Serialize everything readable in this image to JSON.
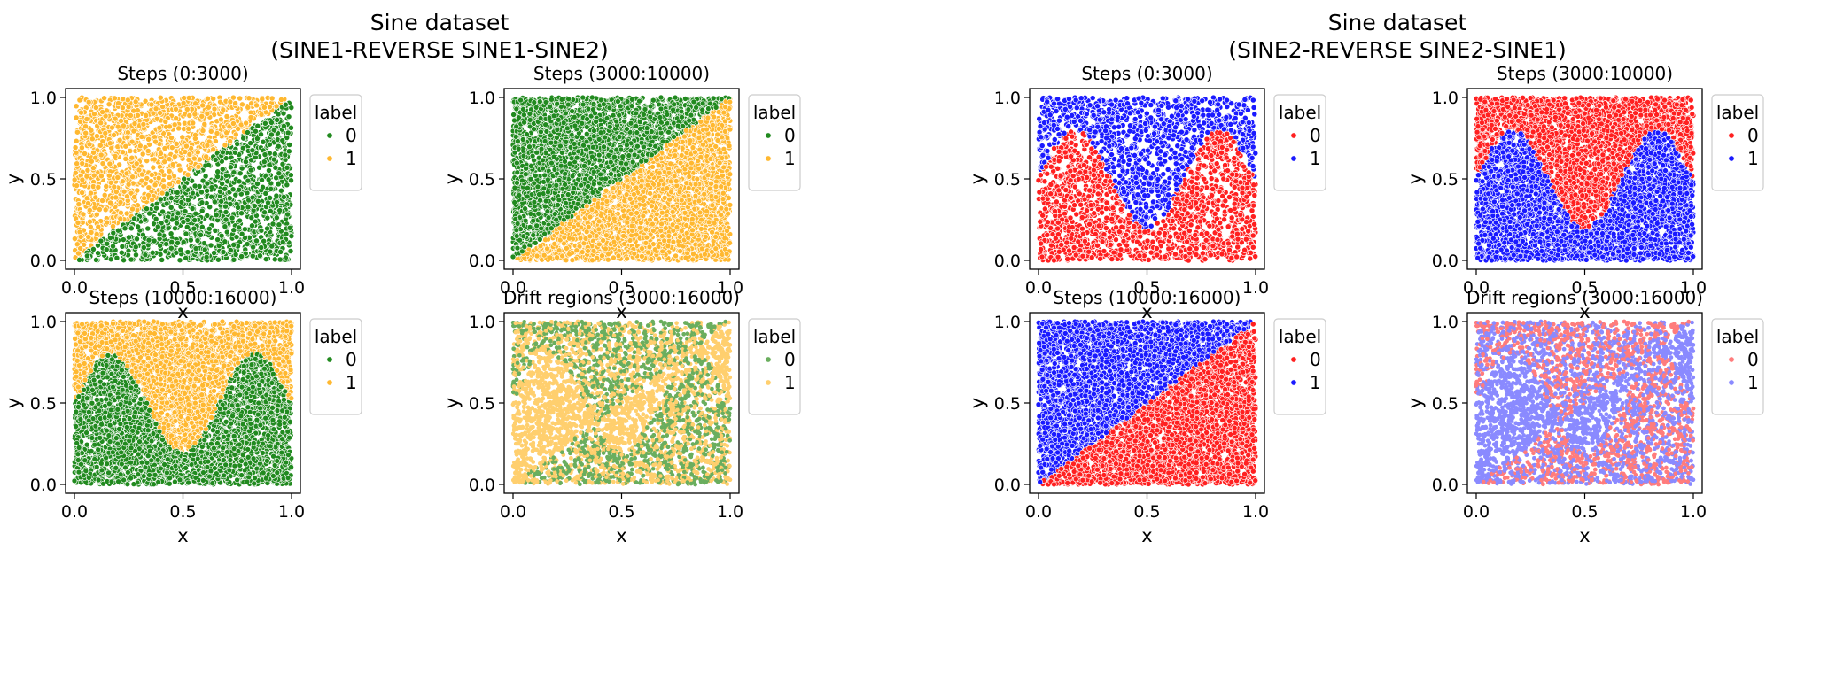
{
  "figure_titles": [
    {
      "line1": "Sine dataset",
      "line2": "(SINE1-REVERSE SINE1-SINE2)"
    },
    {
      "line1": "Sine dataset",
      "line2": "(SINE2-REVERSE SINE2-SINE1)"
    }
  ],
  "colors": {
    "green": "#218a1f",
    "orange": "#ffb830",
    "red": "#ff2020",
    "blue": "#1a1aff",
    "green_light": "#6aae5e",
    "orange_light": "#ffcf6e",
    "red_light": "#ff7c7c",
    "blue_light": "#8a8aff"
  },
  "chart_data": [
    {
      "type": "scatter",
      "title": "Steps (0:3000)",
      "xlabel": "x",
      "ylabel": "y",
      "xlim": [
        0,
        1
      ],
      "ylim": [
        0,
        1
      ],
      "xticks": [
        "0.0",
        "0.5",
        "1.0"
      ],
      "yticks": [
        "0.0",
        "0.5",
        "1.0"
      ],
      "legend": {
        "title": "label",
        "placement": "right",
        "entries": [
          {
            "label": "0",
            "color": "green"
          },
          {
            "label": "1",
            "color": "orange"
          }
        ]
      },
      "boundary": "sine1",
      "below": "orange",
      "above": "green",
      "density": "sparse"
    },
    {
      "type": "scatter",
      "title": "Steps (3000:10000)",
      "xlabel": "x",
      "ylabel": "y",
      "xlim": [
        0,
        1
      ],
      "ylim": [
        0,
        1
      ],
      "xticks": [
        "0.0",
        "0.5",
        "1.0"
      ],
      "yticks": [
        "0.0",
        "0.5",
        "1.0"
      ],
      "legend": {
        "title": "label",
        "placement": "right",
        "entries": [
          {
            "label": "0",
            "color": "green"
          },
          {
            "label": "1",
            "color": "orange"
          }
        ]
      },
      "boundary": "sine1",
      "below": "green",
      "above": "orange",
      "density": "dense"
    },
    {
      "type": "scatter",
      "title": "Steps (10000:16000)",
      "xlabel": "x",
      "ylabel": "y",
      "xlim": [
        0,
        1
      ],
      "ylim": [
        0,
        1
      ],
      "xticks": [
        "0.0",
        "0.5",
        "1.0"
      ],
      "yticks": [
        "0.0",
        "0.5",
        "1.0"
      ],
      "legend": {
        "title": "label",
        "placement": "right",
        "entries": [
          {
            "label": "0",
            "color": "green"
          },
          {
            "label": "1",
            "color": "orange"
          }
        ]
      },
      "boundary": "sine2",
      "below": "orange",
      "above": "green",
      "density": "dense"
    },
    {
      "type": "scatter",
      "title": "Drift regions (3000:16000)",
      "xlabel": "x",
      "ylabel": "y",
      "xlim": [
        0,
        1
      ],
      "ylim": [
        0,
        1
      ],
      "xticks": [
        "0.0",
        "0.5",
        "1.0"
      ],
      "yticks": [
        "0.0",
        "0.5",
        "1.0"
      ],
      "legend": {
        "title": "label",
        "placement": "right",
        "entries": [
          {
            "label": "0",
            "color": "green_light"
          },
          {
            "label": "1",
            "color": "orange_light"
          }
        ]
      },
      "boundary": "drift",
      "c0": "green_light",
      "c1": "orange_light",
      "density": "drift"
    },
    {
      "type": "scatter",
      "title": "Steps (0:3000)",
      "xlabel": "x",
      "ylabel": "y",
      "xlim": [
        0,
        1
      ],
      "ylim": [
        0,
        1
      ],
      "xticks": [
        "0.0",
        "0.5",
        "1.0"
      ],
      "yticks": [
        "0.0",
        "0.5",
        "1.0"
      ],
      "legend": {
        "title": "label",
        "placement": "right",
        "entries": [
          {
            "label": "0",
            "color": "red"
          },
          {
            "label": "1",
            "color": "blue"
          }
        ]
      },
      "boundary": "sine2",
      "below": "blue",
      "above": "red",
      "density": "sparse"
    },
    {
      "type": "scatter",
      "title": "Steps (3000:10000)",
      "xlabel": "x",
      "ylabel": "y",
      "xlim": [
        0,
        1
      ],
      "ylim": [
        0,
        1
      ],
      "xticks": [
        "0.0",
        "0.5",
        "1.0"
      ],
      "yticks": [
        "0.0",
        "0.5",
        "1.0"
      ],
      "legend": {
        "title": "label",
        "placement": "right",
        "entries": [
          {
            "label": "0",
            "color": "red"
          },
          {
            "label": "1",
            "color": "blue"
          }
        ]
      },
      "boundary": "sine2",
      "below": "red",
      "above": "blue",
      "density": "dense"
    },
    {
      "type": "scatter",
      "title": "Steps (10000:16000)",
      "xlabel": "x",
      "ylabel": "y",
      "xlim": [
        0,
        1
      ],
      "ylim": [
        0,
        1
      ],
      "xticks": [
        "0.0",
        "0.5",
        "1.0"
      ],
      "yticks": [
        "0.0",
        "0.5",
        "1.0"
      ],
      "legend": {
        "title": "label",
        "placement": "right",
        "entries": [
          {
            "label": "0",
            "color": "red"
          },
          {
            "label": "1",
            "color": "blue"
          }
        ]
      },
      "boundary": "sine1",
      "below": "blue",
      "above": "red",
      "density": "dense"
    },
    {
      "type": "scatter",
      "title": "Drift regions (3000:16000)",
      "xlabel": "x",
      "ylabel": "y",
      "xlim": [
        0,
        1
      ],
      "ylim": [
        0,
        1
      ],
      "xticks": [
        "0.0",
        "0.5",
        "1.0"
      ],
      "yticks": [
        "0.0",
        "0.5",
        "1.0"
      ],
      "legend": {
        "title": "label",
        "placement": "right",
        "entries": [
          {
            "label": "0",
            "color": "red_light"
          },
          {
            "label": "1",
            "color": "blue_light"
          }
        ]
      },
      "boundary": "drift",
      "c0": "red_light",
      "c1": "blue_light",
      "density": "drift"
    }
  ]
}
